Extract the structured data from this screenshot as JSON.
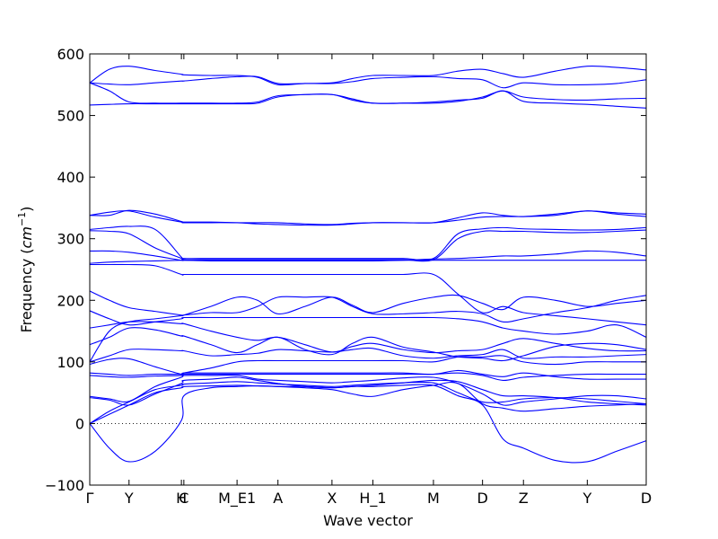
{
  "chart_data": {
    "type": "line",
    "title": "",
    "xlabel": "Wave vector",
    "ylabel": "Frequency (cm⁻¹)",
    "ylabel_main": "Frequency ",
    "ylabel_unit_open": "(",
    "ylabel_unit_base": "cm",
    "ylabel_unit_exp": "−1",
    "ylabel_unit_close": ")",
    "ylim": [
      -100,
      600
    ],
    "yticks": [
      -100,
      0,
      100,
      200,
      300,
      400,
      500,
      600
    ],
    "xlim": [
      0,
      6.8
    ],
    "grid": false,
    "legend": "none",
    "line_color": "#0000ff",
    "zero_line": true,
    "xticks": [
      {
        "label": "Γ",
        "pos": 0.0
      },
      {
        "label": "Y",
        "pos": 0.48
      },
      {
        "label": "H",
        "pos": 1.12
      },
      {
        "label": "C",
        "pos": 1.15
      },
      {
        "label": "M_E1",
        "pos": 1.8
      },
      {
        "label": "A",
        "pos": 2.3
      },
      {
        "label": "X",
        "pos": 2.96
      },
      {
        "label": "H_1",
        "pos": 3.46
      },
      {
        "label": "M",
        "pos": 4.2
      },
      {
        "label": "D",
        "pos": 4.8
      },
      {
        "label": "Z",
        "pos": 5.3
      },
      {
        "label": "Y",
        "pos": 6.08
      },
      {
        "label": "D",
        "pos": 6.8
      }
    ],
    "x": [
      0.0,
      0.24,
      0.48,
      0.8,
      1.12,
      1.15,
      1.48,
      1.8,
      2.05,
      2.3,
      2.63,
      2.96,
      3.21,
      3.46,
      3.83,
      4.2,
      4.5,
      4.8,
      5.05,
      5.3,
      5.69,
      6.08,
      6.44,
      6.8
    ],
    "series": [
      {
        "values": [
          0,
          -40,
          -62,
          -45,
          5,
          45,
          58,
          60,
          61,
          60,
          58,
          55,
          48,
          44,
          55,
          62,
          65,
          32,
          25,
          20,
          24,
          28,
          30,
          32
        ]
      },
      {
        "values": [
          0,
          15,
          30,
          50,
          58,
          60,
          61,
          62,
          61,
          60,
          60,
          58,
          60,
          60,
          62,
          62,
          45,
          30,
          -25,
          -40,
          -60,
          -62,
          -45,
          -28
        ]
      },
      {
        "values": [
          0,
          20,
          35,
          55,
          62,
          64,
          66,
          68,
          66,
          64,
          62,
          60,
          62,
          64,
          66,
          66,
          50,
          35,
          35,
          40,
          42,
          40,
          36,
          32
        ]
      },
      {
        "values": [
          42,
          38,
          30,
          48,
          65,
          70,
          72,
          75,
          70,
          65,
          60,
          58,
          60,
          62,
          66,
          70,
          68,
          55,
          45,
          45,
          42,
          35,
          32,
          30
        ]
      },
      {
        "values": [
          44,
          40,
          36,
          60,
          75,
          78,
          78,
          78,
          72,
          70,
          68,
          66,
          68,
          70,
          74,
          75,
          65,
          48,
          30,
          35,
          40,
          45,
          45,
          40
        ]
      },
      {
        "values": [
          78,
          76,
          75,
          77,
          78,
          80,
          80,
          80,
          80,
          80,
          80,
          80,
          80,
          80,
          80,
          80,
          82,
          78,
          70,
          75,
          78,
          80,
          80,
          80
        ]
      },
      {
        "values": [
          82,
          80,
          78,
          80,
          80,
          82,
          82,
          82,
          82,
          82,
          82,
          82,
          82,
          82,
          82,
          80,
          86,
          80,
          76,
          82,
          76,
          72,
          72,
          72
        ]
      },
      {
        "values": [
          96,
          104,
          105,
          92,
          80,
          82,
          90,
          100,
          102,
          102,
          102,
          102,
          102,
          102,
          102,
          100,
          108,
          108,
          110,
          100,
          96,
          100,
          100,
          100
        ]
      },
      {
        "values": [
          100,
          110,
          120,
          120,
          118,
          118,
          110,
          112,
          114,
          120,
          118,
          116,
          120,
          122,
          110,
          106,
          110,
          112,
          120,
          106,
          108,
          108,
          110,
          112
        ]
      },
      {
        "values": [
          128,
          140,
          155,
          152,
          142,
          142,
          128,
          115,
          128,
          140,
          120,
          112,
          130,
          140,
          124,
          116,
          108,
          106,
          102,
          110,
          125,
          130,
          128,
          120
        ]
      },
      {
        "values": [
          155,
          160,
          165,
          165,
          162,
          162,
          150,
          140,
          135,
          140,
          128,
          116,
          125,
          130,
          120,
          115,
          118,
          120,
          130,
          138,
          130,
          122,
          118,
          118
        ]
      },
      {
        "values": [
          183,
          170,
          160,
          165,
          170,
          172,
          172,
          172,
          172,
          172,
          172,
          172,
          172,
          172,
          172,
          172,
          170,
          165,
          155,
          150,
          145,
          150,
          160,
          140
        ]
      },
      {
        "values": [
          215,
          200,
          188,
          182,
          176,
          176,
          180,
          180,
          190,
          205,
          205,
          205,
          190,
          178,
          178,
          180,
          182,
          178,
          165,
          170,
          180,
          188,
          200,
          208
        ]
      },
      {
        "values": [
          100,
          150,
          165,
          170,
          175,
          176,
          190,
          205,
          200,
          178,
          190,
          205,
          192,
          180,
          195,
          205,
          208,
          195,
          185,
          205,
          200,
          190,
          195,
          200
        ]
      },
      {
        "values": [
          258,
          258,
          258,
          256,
          242,
          242,
          242,
          242,
          242,
          242,
          242,
          242,
          242,
          242,
          242,
          242,
          210,
          180,
          190,
          180,
          175,
          170,
          165,
          160
        ]
      },
      {
        "values": [
          260,
          262,
          263,
          264,
          265,
          265,
          265,
          265,
          265,
          265,
          265,
          265,
          265,
          265,
          265,
          265,
          265,
          265,
          265,
          265,
          265,
          265,
          265,
          265
        ]
      },
      {
        "values": [
          280,
          280,
          278,
          272,
          265,
          265,
          264,
          264,
          264,
          264,
          264,
          264,
          264,
          264,
          265,
          267,
          268,
          270,
          272,
          272,
          275,
          280,
          278,
          272
        ]
      },
      {
        "values": [
          313,
          312,
          308,
          285,
          268,
          266,
          266,
          266,
          266,
          266,
          266,
          266,
          266,
          266,
          266,
          266,
          300,
          312,
          312,
          312,
          310,
          310,
          312,
          314
        ]
      },
      {
        "values": [
          315,
          318,
          320,
          315,
          270,
          268,
          268,
          268,
          268,
          268,
          268,
          268,
          268,
          268,
          268,
          268,
          308,
          316,
          318,
          316,
          315,
          314,
          315,
          318
        ]
      },
      {
        "values": [
          338,
          343,
          345,
          335,
          327,
          326,
          326,
          326,
          324,
          323,
          322,
          322,
          324,
          326,
          326,
          326,
          334,
          342,
          338,
          336,
          340,
          345,
          342,
          340
        ]
      },
      {
        "values": [
          338,
          338,
          346,
          340,
          328,
          327,
          327,
          326,
          326,
          326,
          324,
          323,
          325,
          326,
          326,
          326,
          330,
          335,
          336,
          336,
          338,
          345,
          340,
          336
        ]
      },
      {
        "values": [
          517,
          518,
          519,
          519,
          519,
          519,
          519,
          519,
          520,
          530,
          534,
          534,
          527,
          520,
          520,
          522,
          525,
          528,
          540,
          523,
          520,
          518,
          515,
          512
        ]
      },
      {
        "values": [
          553,
          540,
          522,
          520,
          520,
          520,
          520,
          520,
          522,
          532,
          534,
          534,
          525,
          520,
          520,
          520,
          523,
          530,
          540,
          530,
          526,
          525,
          527,
          528
        ]
      },
      {
        "values": [
          553,
          551,
          550,
          553,
          556,
          556,
          560,
          563,
          563,
          552,
          552,
          552,
          555,
          560,
          562,
          563,
          560,
          558,
          545,
          553,
          550,
          550,
          552,
          558
        ]
      },
      {
        "values": [
          553,
          575,
          580,
          573,
          567,
          566,
          565,
          565,
          562,
          550,
          552,
          553,
          560,
          565,
          565,
          565,
          572,
          575,
          568,
          562,
          572,
          580,
          578,
          574
        ]
      }
    ]
  }
}
